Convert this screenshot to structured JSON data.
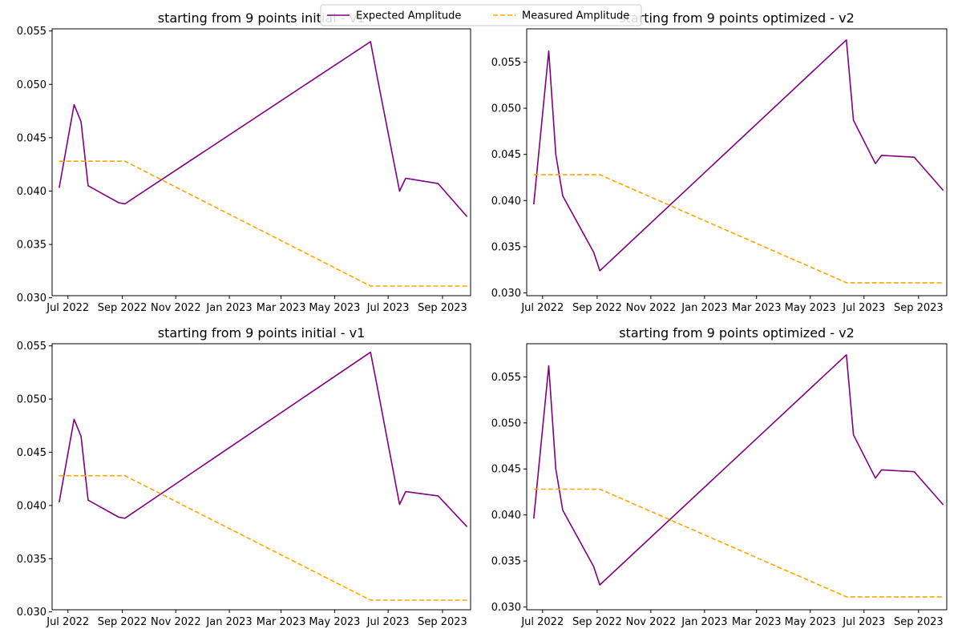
{
  "legend": {
    "position": "top-center",
    "entries": [
      {
        "label": "Expected Amplitude",
        "color": "#800080",
        "style": "solid"
      },
      {
        "label": "Measured Amplitude",
        "color": "#FFA500",
        "style": "dashed"
      }
    ]
  },
  "chart_data": [
    {
      "type": "line",
      "title": "starting from 9 points initial - v1",
      "xlabel": "",
      "ylabel": "",
      "xlim": [
        "2022-06-13",
        "2023-10-03"
      ],
      "ylim": [
        0.0302,
        0.0552
      ],
      "x_ticks": [
        {
          "date": "2022-07-01",
          "label": "Jul 2022"
        },
        {
          "date": "2022-09-01",
          "label": "Sep 2022"
        },
        {
          "date": "2022-11-01",
          "label": "Nov 2022"
        },
        {
          "date": "2023-01-01",
          "label": "Jan 2023"
        },
        {
          "date": "2023-03-01",
          "label": "Mar 2023"
        },
        {
          "date": "2023-05-01",
          "label": "May 2023"
        },
        {
          "date": "2023-07-01",
          "label": "Jul 2023"
        },
        {
          "date": "2023-09-01",
          "label": "Sep 2023"
        }
      ],
      "y_ticks": [
        0.03,
        0.035,
        0.04,
        0.045,
        0.05,
        0.055
      ],
      "grid": false,
      "series": [
        {
          "name": "Expected Amplitude",
          "color": "#800080",
          "style": "solid",
          "x": [
            "2022-06-21",
            "2022-07-08",
            "2022-07-16",
            "2022-07-24",
            "2022-08-28",
            "2022-09-04",
            "2023-06-11",
            "2023-06-19",
            "2023-07-14",
            "2023-07-21",
            "2023-08-27",
            "2023-09-29"
          ],
          "y": [
            0.0403,
            0.0481,
            0.0465,
            0.0405,
            0.0389,
            0.0388,
            0.054,
            0.0505,
            0.04,
            0.0412,
            0.0407,
            0.0376
          ]
        },
        {
          "name": "Measured Amplitude",
          "color": "#FFA500",
          "style": "dashed",
          "x": [
            "2022-06-21",
            "2022-09-04",
            "2023-06-11",
            "2023-09-29"
          ],
          "y": [
            0.0428,
            0.0428,
            0.0311,
            0.0311
          ]
        }
      ]
    },
    {
      "type": "line",
      "title": "starting from 9 points optimized - v2",
      "xlabel": "",
      "ylabel": "",
      "xlim": [
        "2022-06-13",
        "2023-10-03"
      ],
      "ylim": [
        0.0297,
        0.0586
      ],
      "x_ticks": [
        {
          "date": "2022-07-01",
          "label": "Jul 2022"
        },
        {
          "date": "2022-09-01",
          "label": "Sep 2022"
        },
        {
          "date": "2022-11-01",
          "label": "Nov 2022"
        },
        {
          "date": "2023-01-01",
          "label": "Jan 2023"
        },
        {
          "date": "2023-03-01",
          "label": "Mar 2023"
        },
        {
          "date": "2023-05-01",
          "label": "May 2023"
        },
        {
          "date": "2023-07-01",
          "label": "Jul 2023"
        },
        {
          "date": "2023-09-01",
          "label": "Sep 2023"
        }
      ],
      "y_ticks": [
        0.03,
        0.035,
        0.04,
        0.045,
        0.05,
        0.055
      ],
      "grid": false,
      "series": [
        {
          "name": "Expected Amplitude",
          "color": "#800080",
          "style": "solid",
          "x": [
            "2022-06-21",
            "2022-07-08",
            "2022-07-16",
            "2022-07-24",
            "2022-08-28",
            "2022-09-04",
            "2023-06-11",
            "2023-06-19",
            "2023-07-14",
            "2023-07-21",
            "2023-08-27",
            "2023-09-29"
          ],
          "y": [
            0.0396,
            0.0562,
            0.045,
            0.0405,
            0.0344,
            0.0324,
            0.0574,
            0.0487,
            0.044,
            0.0449,
            0.0447,
            0.0411
          ]
        },
        {
          "name": "Measured Amplitude",
          "color": "#FFA500",
          "style": "dashed",
          "x": [
            "2022-06-21",
            "2022-09-04",
            "2023-06-11",
            "2023-09-29"
          ],
          "y": [
            0.0428,
            0.0428,
            0.0311,
            0.0311
          ]
        }
      ]
    },
    {
      "type": "line",
      "title": "starting from 9 points initial - v1",
      "xlabel": "",
      "ylabel": "",
      "xlim": [
        "2022-06-13",
        "2023-10-03"
      ],
      "ylim": [
        0.0302,
        0.0552
      ],
      "x_ticks": [
        {
          "date": "2022-07-01",
          "label": "Jul 2022"
        },
        {
          "date": "2022-09-01",
          "label": "Sep 2022"
        },
        {
          "date": "2022-11-01",
          "label": "Nov 2022"
        },
        {
          "date": "2023-01-01",
          "label": "Jan 2023"
        },
        {
          "date": "2023-03-01",
          "label": "Mar 2023"
        },
        {
          "date": "2023-05-01",
          "label": "May 2023"
        },
        {
          "date": "2023-07-01",
          "label": "Jul 2023"
        },
        {
          "date": "2023-09-01",
          "label": "Sep 2023"
        }
      ],
      "y_ticks": [
        0.03,
        0.035,
        0.04,
        0.045,
        0.05,
        0.055
      ],
      "grid": false,
      "series": [
        {
          "name": "Expected Amplitude",
          "color": "#800080",
          "style": "solid",
          "x": [
            "2022-06-21",
            "2022-07-08",
            "2022-07-16",
            "2022-07-24",
            "2022-08-28",
            "2022-09-04",
            "2023-06-11",
            "2023-06-19",
            "2023-07-14",
            "2023-07-21",
            "2023-08-27",
            "2023-09-29"
          ],
          "y": [
            0.0403,
            0.0481,
            0.0465,
            0.0405,
            0.0389,
            0.0388,
            0.0544,
            0.051,
            0.0401,
            0.0413,
            0.0409,
            0.038
          ]
        },
        {
          "name": "Measured Amplitude",
          "color": "#FFA500",
          "style": "dashed",
          "x": [
            "2022-06-21",
            "2022-09-04",
            "2023-06-11",
            "2023-09-29"
          ],
          "y": [
            0.0428,
            0.0428,
            0.0311,
            0.0311
          ]
        }
      ]
    },
    {
      "type": "line",
      "title": "starting from 9 points optimized - v2",
      "xlabel": "",
      "ylabel": "",
      "xlim": [
        "2022-06-13",
        "2023-10-03"
      ],
      "ylim": [
        0.0297,
        0.0586
      ],
      "x_ticks": [
        {
          "date": "2022-07-01",
          "label": "Jul 2022"
        },
        {
          "date": "2022-09-01",
          "label": "Sep 2022"
        },
        {
          "date": "2022-11-01",
          "label": "Nov 2022"
        },
        {
          "date": "2023-01-01",
          "label": "Jan 2023"
        },
        {
          "date": "2023-03-01",
          "label": "Mar 2023"
        },
        {
          "date": "2023-05-01",
          "label": "May 2023"
        },
        {
          "date": "2023-07-01",
          "label": "Jul 2023"
        },
        {
          "date": "2023-09-01",
          "label": "Sep 2023"
        }
      ],
      "y_ticks": [
        0.03,
        0.035,
        0.04,
        0.045,
        0.05,
        0.055
      ],
      "grid": false,
      "series": [
        {
          "name": "Expected Amplitude",
          "color": "#800080",
          "style": "solid",
          "x": [
            "2022-06-21",
            "2022-07-08",
            "2022-07-16",
            "2022-07-24",
            "2022-08-28",
            "2022-09-04",
            "2023-06-11",
            "2023-06-19",
            "2023-07-14",
            "2023-07-21",
            "2023-08-27",
            "2023-09-29"
          ],
          "y": [
            0.0396,
            0.0562,
            0.045,
            0.0405,
            0.0344,
            0.0324,
            0.0574,
            0.0487,
            0.044,
            0.0449,
            0.0447,
            0.0411
          ]
        },
        {
          "name": "Measured Amplitude",
          "color": "#FFA500",
          "style": "dashed",
          "x": [
            "2022-06-21",
            "2022-09-04",
            "2023-06-11",
            "2023-09-29"
          ],
          "y": [
            0.0428,
            0.0428,
            0.0311,
            0.0311
          ]
        }
      ]
    }
  ]
}
